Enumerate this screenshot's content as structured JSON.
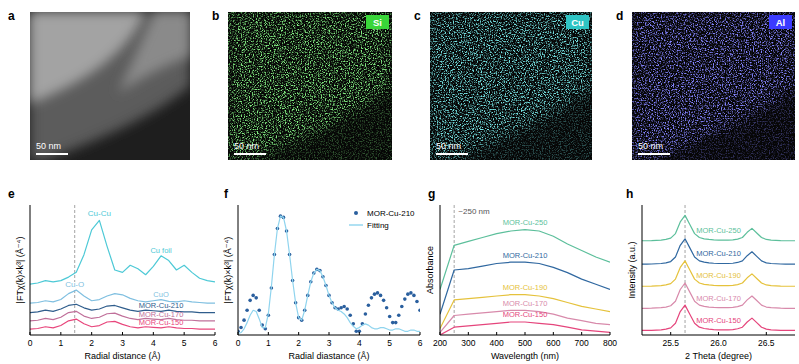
{
  "images": [
    {
      "label": "a",
      "scale_bar": "50 nm"
    },
    {
      "label": "b",
      "scale_bar": "50 nm",
      "element": "Si",
      "color": "#39d639"
    },
    {
      "label": "c",
      "scale_bar": "50 nm",
      "element": "Cu",
      "color": "#2ec4c4"
    },
    {
      "label": "d",
      "scale_bar": "50 nm",
      "element": "Al",
      "color": "#3b3bff"
    }
  ],
  "chart_data": [
    {
      "panel_label": "e",
      "type": "line",
      "xlabel": "Radial distance (Å)",
      "ylabel": "|FTχ(k)×k³| (Å⁻⁴)",
      "xlim": [
        0,
        6
      ],
      "ylim": [
        0,
        11
      ],
      "xticks": [
        0,
        1,
        2,
        3,
        4,
        5,
        6
      ],
      "tick_labels": "x",
      "grid": false,
      "x": [
        0,
        0.25,
        0.5,
        0.75,
        1,
        1.25,
        1.5,
        1.75,
        2,
        2.25,
        2.5,
        2.75,
        3,
        3.25,
        3.5,
        3.75,
        4,
        4.25,
        4.5,
        4.75,
        5,
        5.25,
        5.5,
        5.75,
        6
      ],
      "series": [
        {
          "name": "Cu foil",
          "color": "#4dc9d6",
          "values": [
            4.3,
            4.4,
            4.6,
            4.5,
            4.6,
            4.9,
            5.3,
            6.8,
            8.9,
            9.7,
            7.5,
            5.5,
            5.3,
            5.9,
            5.6,
            5.1,
            5.8,
            6.7,
            6.3,
            5.5,
            5.9,
            5.3,
            4.8,
            4.6,
            4.5
          ]
        },
        {
          "name": "CuO",
          "color": "#7fbfe0",
          "values": [
            2.7,
            2.75,
            2.9,
            2.8,
            3.0,
            3.5,
            3.8,
            3.3,
            2.9,
            3.0,
            3.3,
            3.5,
            3.4,
            3.1,
            2.9,
            2.8,
            2.9,
            3.0,
            2.85,
            2.8,
            2.9,
            2.8,
            2.75,
            2.7,
            2.7
          ]
        },
        {
          "name": "MOR-Cu-210",
          "color": "#2f5d8c",
          "values": [
            1.9,
            1.95,
            2.1,
            2.0,
            2.2,
            2.5,
            2.6,
            2.3,
            2.1,
            2.2,
            2.45,
            2.5,
            2.3,
            2.1,
            2.0,
            2.1,
            2.05,
            2.0,
            2.1,
            2.0,
            1.95,
            1.95,
            1.9,
            1.9,
            1.9
          ]
        },
        {
          "name": "MOR-Cu-170",
          "color": "#c0709a",
          "values": [
            1.2,
            1.25,
            1.4,
            1.3,
            1.5,
            1.9,
            2.0,
            1.6,
            1.4,
            1.5,
            1.8,
            1.85,
            1.6,
            1.4,
            1.3,
            1.4,
            1.35,
            1.3,
            1.4,
            1.3,
            1.25,
            1.25,
            1.2,
            1.2,
            1.2
          ]
        },
        {
          "name": "MOR-Cu-150",
          "color": "#e8467c",
          "values": [
            0.5,
            0.55,
            0.7,
            0.6,
            0.8,
            1.2,
            1.35,
            0.95,
            0.7,
            0.8,
            1.1,
            1.15,
            0.9,
            0.7,
            0.6,
            0.7,
            0.65,
            0.6,
            0.7,
            0.6,
            0.55,
            0.55,
            0.5,
            0.5,
            0.5
          ]
        }
      ],
      "vlines": [
        1.45
      ],
      "annotations": [
        {
          "text": "Cu-Cu",
          "x": 2.25,
          "y": 10.1,
          "color": "#4dc9d6"
        },
        {
          "text": "Cu-O",
          "x": 1.45,
          "y": 4.05,
          "color": "#7fbfe0"
        }
      ]
    },
    {
      "panel_label": "f",
      "type": "line",
      "xlabel": "Radial diastance (Å)",
      "ylabel": "|FTχ(k)×k³| (Å⁻⁴)",
      "xlim": [
        0,
        6
      ],
      "ylim": [
        0,
        10.5
      ],
      "xticks": [
        0,
        1,
        2,
        3,
        4,
        5,
        6
      ],
      "tick_labels": "x",
      "grid": false,
      "legend": "upper right",
      "x": [
        0,
        0.1,
        0.2,
        0.3,
        0.4,
        0.5,
        0.6,
        0.7,
        0.8,
        0.9,
        1,
        1.1,
        1.2,
        1.3,
        1.4,
        1.5,
        1.6,
        1.7,
        1.8,
        1.9,
        2,
        2.1,
        2.2,
        2.3,
        2.4,
        2.5,
        2.6,
        2.7,
        2.8,
        2.9,
        3,
        3.1,
        3.2,
        3.3,
        3.4,
        3.5,
        3.6,
        3.7,
        3.8,
        3.9,
        4,
        4.1,
        4.2,
        4.3,
        4.4,
        4.5,
        4.6,
        4.7,
        4.8,
        4.9,
        5,
        5.1,
        5.2,
        5.3,
        5.4,
        5.5,
        5.6,
        5.7,
        5.8,
        5.9,
        6
      ],
      "series": [
        {
          "name": "MOR-Cu-210",
          "type": "scatter",
          "marker": "circle",
          "color": "#2a5f9e",
          "values": [
            0.3,
            0.6,
            1.2,
            2.0,
            2.8,
            3.2,
            3.0,
            2.0,
            0.8,
            0.5,
            1.6,
            3.8,
            6.5,
            8.6,
            9.6,
            9.5,
            8.4,
            6.5,
            4.4,
            2.6,
            1.4,
            1.2,
            2.0,
            3.2,
            4.3,
            5.0,
            5.3,
            5.2,
            4.7,
            4.0,
            3.2,
            2.6,
            2.2,
            2.1,
            2.2,
            2.3,
            2.1,
            1.6,
            0.9,
            0.3,
            0.3,
            0.9,
            1.7,
            2.4,
            3.0,
            3.3,
            3.4,
            3.2,
            2.8,
            2.2,
            1.5,
            1.0,
            1.0,
            1.6,
            2.3,
            2.9,
            3.3,
            3.4,
            3.2,
            2.7,
            2.0
          ]
        },
        {
          "name": "Fitting",
          "type": "line",
          "color": "#8fd4ee",
          "values": [
            0.1,
            0.2,
            0.5,
            1.0,
            1.6,
            2.0,
            1.9,
            1.3,
            0.6,
            0.6,
            1.7,
            3.9,
            6.5,
            8.6,
            9.6,
            9.5,
            8.4,
            6.5,
            4.4,
            2.6,
            1.4,
            1.2,
            2.0,
            3.2,
            4.3,
            5.0,
            5.3,
            5.2,
            4.7,
            4.0,
            3.2,
            2.6,
            2.2,
            2.0,
            1.9,
            1.7,
            1.4,
            1.0,
            0.7,
            0.5,
            0.6,
            0.8,
            0.9,
            0.8,
            0.6,
            0.5,
            0.5,
            0.6,
            0.6,
            0.5,
            0.4,
            0.4,
            0.5,
            0.5,
            0.4,
            0.3,
            0.3,
            0.4,
            0.4,
            0.3,
            0.3
          ]
        }
      ]
    },
    {
      "panel_label": "g",
      "type": "line",
      "xlabel": "Wavelength (nm)",
      "ylabel": "Absorbance",
      "xlim": [
        200,
        800
      ],
      "ylim": [
        0,
        10
      ],
      "xticks": [
        200,
        300,
        400,
        500,
        600,
        700,
        800
      ],
      "tick_labels": "x",
      "grid": false,
      "x": [
        200,
        250,
        300,
        350,
        400,
        450,
        500,
        550,
        600,
        650,
        700,
        750,
        800
      ],
      "series": [
        {
          "name": "MOR-Cu-250",
          "color": "#5cbf9b",
          "values": [
            3.5,
            6.9,
            7.2,
            7.5,
            7.8,
            8.0,
            8.1,
            8.0,
            7.6,
            7.0,
            6.5,
            6.0,
            5.6
          ]
        },
        {
          "name": "MOR-Cu-210",
          "color": "#3068a0",
          "values": [
            1.6,
            5.0,
            5.1,
            5.3,
            5.5,
            5.6,
            5.6,
            5.5,
            5.2,
            4.8,
            4.3,
            3.9,
            3.5
          ]
        },
        {
          "name": "MOR-Cu-190",
          "color": "#e5c23c",
          "values": [
            0.5,
            2.7,
            2.8,
            2.9,
            3.0,
            3.1,
            3.1,
            3.0,
            2.8,
            2.5,
            2.2,
            2.0,
            1.8
          ]
        },
        {
          "name": "MOR-Cu-170",
          "color": "#d88aab",
          "values": [
            0.2,
            1.5,
            1.6,
            1.7,
            1.8,
            1.9,
            1.9,
            1.8,
            1.6,
            1.3,
            1.1,
            0.9,
            0.8
          ]
        },
        {
          "name": "MOR-Cu-150",
          "color": "#e5457c",
          "values": [
            0.0,
            0.6,
            0.7,
            0.8,
            0.9,
            1.0,
            1.0,
            0.9,
            0.8,
            0.6,
            0.4,
            0.3,
            0.2
          ]
        }
      ],
      "vlines": [
        250
      ],
      "annotations": [
        {
          "text": "~250 nm",
          "x": 320,
          "y": 9.3,
          "color": "#555555"
        }
      ]
    },
    {
      "panel_label": "h",
      "type": "line",
      "xlabel": "2 Theta (degree)",
      "ylabel": "Intensity (a.u.)",
      "xlim": [
        25.2,
        26.8
      ],
      "ylim": [
        0,
        10
      ],
      "xticks": [
        25.5,
        {
          "value": 26,
          "label": "26.0"
        },
        26.5
      ],
      "tick_labels": "x",
      "grid": false,
      "x": [
        25.2,
        25.25,
        25.3,
        25.35,
        25.4,
        25.45,
        25.5,
        25.55,
        25.6,
        25.65,
        25.7,
        25.75,
        25.8,
        25.85,
        25.9,
        25.95,
        26,
        26.05,
        26.1,
        26.15,
        26.2,
        26.25,
        26.3,
        26.35,
        26.4,
        26.45,
        26.5,
        26.55,
        26.6,
        26.65,
        26.7,
        26.75,
        26.8
      ],
      "series": [
        {
          "name": "MOR-Cu-250",
          "color": "#5cbf9b",
          "values": [
            7.25,
            7.25,
            7.26,
            7.28,
            7.3,
            7.35,
            7.45,
            7.8,
            8.7,
            9.2,
            8.5,
            7.8,
            7.5,
            7.4,
            7.35,
            7.32,
            7.3,
            7.3,
            7.3,
            7.32,
            7.38,
            7.5,
            7.9,
            8.2,
            7.85,
            7.5,
            7.35,
            7.3,
            7.28,
            7.26,
            7.25,
            7.25,
            7.25
          ]
        },
        {
          "name": "MOR-Cu-210",
          "color": "#3068a0",
          "values": [
            5.45,
            5.45,
            5.46,
            5.48,
            5.5,
            5.55,
            5.65,
            6.0,
            6.9,
            7.4,
            6.7,
            6.0,
            5.7,
            5.6,
            5.55,
            5.52,
            5.5,
            5.5,
            5.5,
            5.52,
            5.58,
            5.7,
            6.1,
            6.4,
            6.05,
            5.7,
            5.55,
            5.5,
            5.48,
            5.46,
            5.45,
            5.45,
            5.45
          ]
        },
        {
          "name": "MOR-Cu-190",
          "color": "#e5c23c",
          "values": [
            3.75,
            3.75,
            3.76,
            3.78,
            3.8,
            3.85,
            3.95,
            4.3,
            5.2,
            5.7,
            5.0,
            4.3,
            4.0,
            3.9,
            3.85,
            3.82,
            3.8,
            3.8,
            3.8,
            3.82,
            3.88,
            4.0,
            4.4,
            4.7,
            4.35,
            4.0,
            3.85,
            3.8,
            3.78,
            3.76,
            3.75,
            3.75,
            3.75
          ]
        },
        {
          "name": "MOR-Cu-170",
          "color": "#d88aab",
          "values": [
            2.05,
            2.05,
            2.06,
            2.08,
            2.1,
            2.15,
            2.25,
            2.6,
            3.5,
            4.0,
            3.3,
            2.6,
            2.3,
            2.2,
            2.15,
            2.12,
            2.1,
            2.1,
            2.1,
            2.12,
            2.18,
            2.3,
            2.7,
            3.0,
            2.65,
            2.3,
            2.15,
            2.1,
            2.08,
            2.06,
            2.05,
            2.05,
            2.05
          ]
        },
        {
          "name": "MOR-Cu-150",
          "color": "#e5457c",
          "values": [
            0.35,
            0.35,
            0.36,
            0.38,
            0.4,
            0.45,
            0.55,
            0.9,
            1.8,
            2.3,
            1.6,
            0.9,
            0.6,
            0.5,
            0.45,
            0.42,
            0.4,
            0.4,
            0.4,
            0.42,
            0.48,
            0.6,
            1.0,
            1.3,
            0.95,
            0.6,
            0.45,
            0.4,
            0.38,
            0.36,
            0.35,
            0.35,
            0.35
          ]
        }
      ],
      "vlines": [
        25.65
      ]
    }
  ]
}
